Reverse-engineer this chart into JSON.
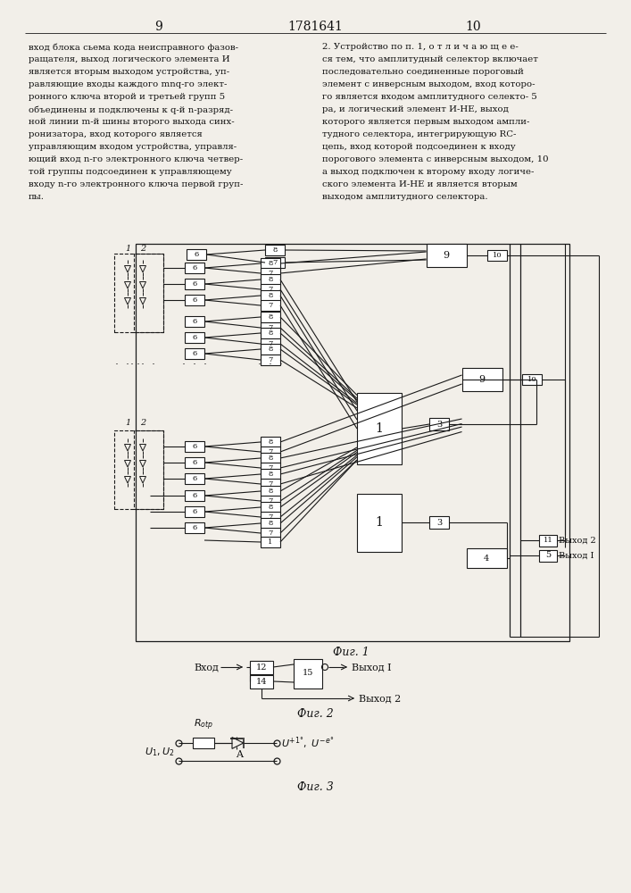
{
  "page_num_left": "9",
  "page_num_center": "1781641",
  "page_num_right": "10",
  "left_text_lines": [
    "вход блока сьема кода неисправного фазов-",
    "ращателя, выход логического элемента И",
    "является вторым выходом устройства, уп-",
    "равляющие входы каждого mnq-го элект-",
    "ронного ключа второй и третьей групп 5",
    "объединены и подключены к q-й n-разряд-",
    "ной линии m-й шины второго выхода синх-",
    "ронизатора, вход которого является",
    "управляющим входом устройства, управля-",
    "ющий вход n-го электронного ключа четвер-",
    "той группы подсоединен к управляющему",
    "входу n-го электронного ключа первой груп-",
    "пы."
  ],
  "right_text_lines": [
    "2. Устройство по п. 1, о т л и ч а ю щ е е-",
    "ся тем, что амплитудный селектор включает",
    "последовательно соединенные пороговый",
    "элемент с инверсным выходом, вход которо-",
    "го является входом амплитудного селекто- 5",
    "ра, и логический элемент И-НЕ, выход",
    "которого является первым выходом ампли-",
    "тудного селектора, интегрирующую RC-",
    "цепь, вход которой подсоединен к входу",
    "порогового элемента с инверсным выходом, 10",
    "а выход подключен к второму входу логиче-",
    "ского элемента И-НЕ и является вторым",
    "выходом амплитудного селектора."
  ],
  "fig1_caption": "Фиг. 1",
  "fig2_caption": "Фиг. 2",
  "fig3_caption": "Фиг. 3",
  "bg_color": "#f2efe9",
  "lc": "#1a1a1a",
  "tc": "#111111"
}
